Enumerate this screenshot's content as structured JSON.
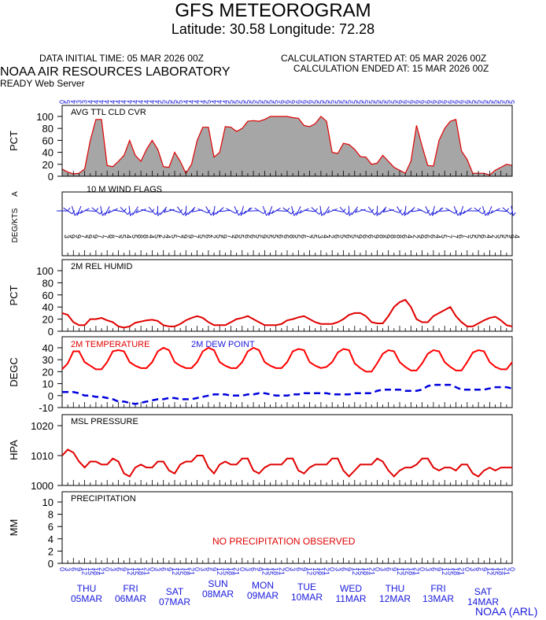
{
  "header": {
    "title": "GFS METEOROGRAM",
    "subtitle": "Latitude: 30.58 Longitude:  72.28",
    "data_initial_time": "DATA INITIAL TIME: 05 MAR 2026 00Z",
    "calculation_started": "CALCULATION STARTED AT: 05 MAR 2026 00Z",
    "calculation_ended": "CALCULATION ENDED AT: 15 MAR 2026 00Z",
    "lab": "NOAA AIR RESOURCES LABORATORY",
    "server": "READY Web Server",
    "credit": "NOAA (ARL)"
  },
  "chart_data": {
    "type": "line",
    "x_unit": "forecast hour (3-hourly, 0 to 240)",
    "x_start": 0,
    "x_step": 3,
    "hour_tick_labels": [
      "0",
      "3",
      "6",
      "9",
      "12",
      "15",
      "18",
      "21",
      "0",
      "3",
      "6",
      "9",
      "12",
      "15",
      "18",
      "21",
      "0",
      "3",
      "6",
      "9",
      "12",
      "15",
      "18",
      "21",
      "0",
      "3",
      "6",
      "9",
      "12",
      "15",
      "18",
      "21",
      "0",
      "3",
      "6",
      "9",
      "12",
      "15",
      "18",
      "21",
      "0",
      "3",
      "6",
      "9",
      "12",
      "15",
      "18",
      "21",
      "0",
      "3",
      "6",
      "9",
      "12",
      "15",
      "18",
      "21",
      "0",
      "3",
      "6",
      "9",
      "12",
      "15",
      "18",
      "21",
      "0",
      "3",
      "6",
      "9",
      "12",
      "15",
      "18",
      "21",
      "0",
      "3",
      "6",
      "9",
      "12",
      "15",
      "18",
      "21",
      "0"
    ],
    "day_labels": [
      {
        "dow": "THU",
        "date": "05MAR"
      },
      {
        "dow": "FRI",
        "date": "06MAR"
      },
      {
        "dow": "SAT",
        "date": "07MAR"
      },
      {
        "dow": "SUN",
        "date": "08MAR"
      },
      {
        "dow": "MON",
        "date": "09MAR"
      },
      {
        "dow": "TUE",
        "date": "10MAR"
      },
      {
        "dow": "WED",
        "date": "11MAR"
      },
      {
        "dow": "THU",
        "date": "12MAR"
      },
      {
        "dow": "FRI",
        "date": "13MAR"
      },
      {
        "dow": "SAT",
        "date": "14MAR"
      }
    ],
    "top_axis_values": [
      "0",
      "5",
      "4",
      "3",
      "3",
      "4",
      "4",
      "4",
      "4",
      "4",
      "4",
      "4",
      "4",
      "4",
      "4",
      "4",
      "4",
      "4",
      "5",
      "5",
      "5",
      "5",
      "4",
      "4",
      "4",
      "4",
      "5",
      "4",
      "4",
      "4",
      "5",
      "5",
      "5",
      "5",
      "5",
      "5",
      "5",
      "5",
      "5",
      "6",
      "6",
      "6",
      "6",
      "6",
      "6",
      "5",
      "5",
      "5",
      "5",
      "5",
      "5",
      "5",
      "5",
      "5",
      "5",
      "5",
      "5",
      "5",
      "5",
      "5",
      "6",
      "6",
      "6",
      "6",
      "6",
      "6",
      "6",
      "6",
      "6",
      "6",
      "6",
      "6",
      "6",
      "5",
      "5",
      "5",
      "5",
      "5",
      "5",
      "5",
      "5"
    ],
    "panels": [
      {
        "id": "cloud",
        "title": "AVG TTL CLD CVR",
        "ylabel": "PCT",
        "ylim": [
          0,
          100
        ],
        "yticks": [
          "100",
          "80",
          "60",
          "40",
          "20",
          "0"
        ],
        "values": [
          12,
          7,
          4,
          5,
          12,
          60,
          95,
          95,
          18,
          16,
          25,
          35,
          60,
          35,
          25,
          45,
          60,
          45,
          16,
          15,
          40,
          25,
          5,
          20,
          60,
          82,
          82,
          32,
          40,
          83,
          82,
          75,
          80,
          92,
          93,
          92,
          95,
          100,
          100,
          100,
          100,
          98,
          97,
          85,
          83,
          88,
          100,
          92,
          40,
          38,
          55,
          53,
          45,
          33,
          32,
          20,
          22,
          35,
          25,
          15,
          10,
          5,
          25,
          85,
          50,
          18,
          17,
          60,
          80,
          92,
          95,
          42,
          28,
          5,
          5,
          5,
          2,
          10,
          15,
          20,
          18
        ]
      },
      {
        "id": "wind",
        "title": "10 M  WIND FLAGS",
        "ylabel": "DEG/KTS",
        "ylabel2": "A",
        "speeds_kts": [
          "3",
          "9",
          "9",
          "7",
          "9",
          "9",
          "7",
          "7",
          "8",
          "7",
          "5",
          "4",
          "5",
          "8",
          "8",
          "4",
          "5",
          "2",
          "4",
          "5",
          "7",
          "9",
          "9",
          "7",
          "5",
          "6",
          "2",
          "5",
          "9",
          "7",
          "9",
          "5",
          "6",
          "6",
          "5",
          "9",
          "5",
          "5",
          "6",
          "6",
          "8",
          "5",
          "6",
          "7",
          "5",
          "3",
          "4",
          "2",
          "6",
          "5",
          "6",
          "5",
          "9",
          "6",
          "6",
          "9",
          "8",
          "9",
          "8",
          "8",
          "6",
          "4",
          "2",
          "9",
          "6",
          "6",
          "4",
          "5",
          "7",
          "7",
          "6",
          "7",
          "5",
          "5",
          "6",
          "4",
          "2",
          "5",
          "5",
          "9",
          "4"
        ]
      },
      {
        "id": "rh",
        "title": "2M REL HUMID",
        "ylabel": "PCT",
        "ylim": [
          0,
          100
        ],
        "yticks": [
          "100",
          "80",
          "60",
          "40",
          "20",
          "0"
        ],
        "values": [
          30,
          27,
          15,
          10,
          10,
          20,
          20,
          22,
          18,
          15,
          8,
          6,
          8,
          14,
          16,
          18,
          19,
          17,
          10,
          8,
          8,
          12,
          18,
          22,
          25,
          22,
          15,
          10,
          10,
          10,
          15,
          20,
          22,
          25,
          20,
          15,
          10,
          10,
          10,
          12,
          18,
          20,
          23,
          25,
          20,
          15,
          12,
          12,
          12,
          15,
          20,
          27,
          30,
          30,
          25,
          15,
          13,
          13,
          25,
          40,
          48,
          52,
          40,
          20,
          15,
          15,
          25,
          30,
          35,
          40,
          25,
          15,
          8,
          8,
          13,
          18,
          22,
          24,
          18,
          10,
          8
        ]
      },
      {
        "id": "temp",
        "title": "2M TEMPERATURE",
        "title2": "2M  DEW POINT",
        "ylabel": "DEGC",
        "ylim": [
          -10,
          40
        ],
        "yticks": [
          "40",
          "30",
          "20",
          "10",
          "0",
          "-10"
        ],
        "series": [
          {
            "name": "2M TEMPERATURE",
            "color": "#ff0000",
            "values": [
              22,
              27,
              37,
              37,
              28,
              25,
              22,
              22,
              28,
              37,
              38,
              37,
              28,
              25,
              23,
              23,
              28,
              37,
              40,
              38,
              28,
              25,
              23,
              23,
              28,
              37,
              40,
              38,
              28,
              25,
              23,
              23,
              28,
              37,
              40,
              38,
              28,
              25,
              23,
              23,
              28,
              37,
              39,
              38,
              28,
              25,
              23,
              24,
              28,
              36,
              39,
              38,
              27,
              23,
              20,
              20,
              27,
              35,
              38,
              37,
              28,
              24,
              21,
              21,
              27,
              35,
              38,
              37,
              28,
              24,
              21,
              21,
              28,
              36,
              38,
              37,
              28,
              24,
              22,
              22,
              28
            ]
          },
          {
            "name": "2M  DEW POINT",
            "color": "#0000dd",
            "values": [
              3,
              3,
              3,
              2,
              0,
              0,
              -1,
              -1,
              -2,
              -3,
              -5,
              -5,
              -6,
              -7,
              -6,
              -5,
              -4,
              -3,
              -3,
              -2,
              -2,
              -3,
              -3,
              -3,
              -2,
              -1,
              0,
              1,
              1,
              1,
              0,
              0,
              0,
              1,
              1,
              2,
              2,
              1,
              0,
              0,
              0,
              1,
              1,
              2,
              2,
              2,
              2,
              2,
              1,
              1,
              1,
              1,
              2,
              2,
              2,
              2,
              4,
              5,
              5,
              5,
              5,
              4,
              4,
              4,
              5,
              8,
              9,
              9,
              9,
              9,
              7,
              5,
              5,
              5,
              5,
              5,
              6,
              7,
              7,
              7,
              6
            ]
          }
        ]
      },
      {
        "id": "pressure",
        "title": "MSL PRESSURE",
        "ylabel": "HPA",
        "ylim": [
          1000,
          1020
        ],
        "yticks": [
          "1020",
          "1010",
          "1000"
        ],
        "values": [
          1010,
          1012,
          1011,
          1008,
          1006,
          1008,
          1008,
          1007,
          1007,
          1009,
          1008,
          1004,
          1003,
          1006,
          1007,
          1006,
          1006,
          1008,
          1008,
          1005,
          1004,
          1007,
          1008,
          1008,
          1010,
          1010,
          1006,
          1004,
          1007,
          1008,
          1007,
          1007,
          1009,
          1009,
          1005,
          1004,
          1006,
          1007,
          1007,
          1007,
          1009,
          1009,
          1005,
          1004,
          1006,
          1007,
          1007,
          1007,
          1009,
          1009,
          1005,
          1003,
          1005,
          1007,
          1007,
          1007,
          1009,
          1008,
          1005,
          1003,
          1005,
          1006,
          1006,
          1007,
          1009,
          1009,
          1006,
          1005,
          1006,
          1006,
          1005,
          1007,
          1007,
          1004,
          1003,
          1005,
          1006,
          1005,
          1006,
          1006,
          1006
        ]
      },
      {
        "id": "precip",
        "title": "PRECIPITATION",
        "ylabel": "MM",
        "ylim": [
          0,
          10
        ],
        "yticks": [
          "10",
          "8",
          "6",
          "4",
          "2",
          "0"
        ],
        "note": "NO PRECIPITATION OBSERVED",
        "values": []
      }
    ]
  }
}
